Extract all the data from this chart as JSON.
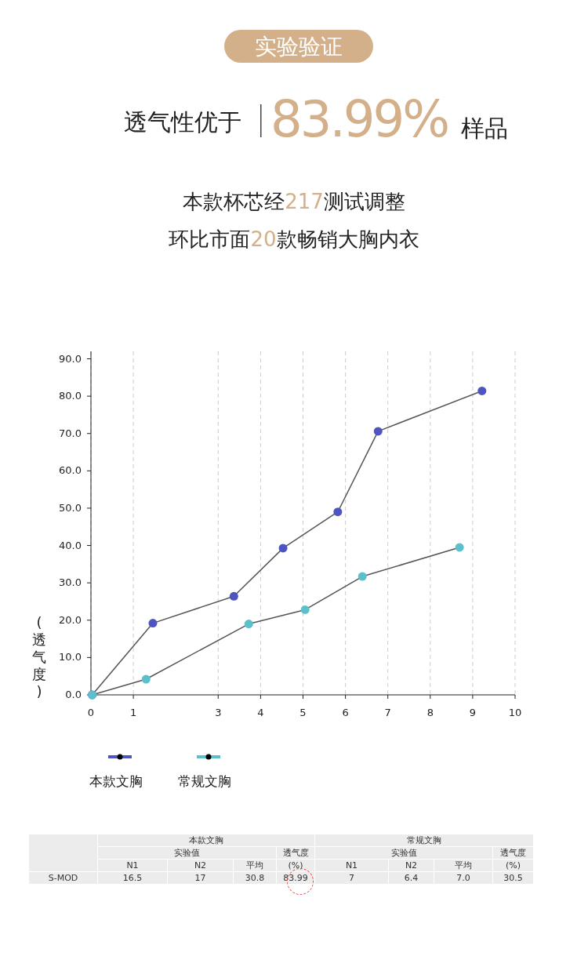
{
  "chart_data": [
    {
      "type": "line",
      "title": "实验验证",
      "subtitle": "透气性优于 83.99% 样品",
      "annotations": [
        "本款杯芯经217测试调整",
        "环比市面20款畅销大胸内衣"
      ],
      "ylabel": "(透气度)",
      "xlim": [
        0,
        10
      ],
      "ylim": [
        0,
        92
      ],
      "xticks": [
        0,
        1,
        3,
        4,
        5,
        6,
        7,
        8,
        9,
        10
      ],
      "yticks": [
        {
          "value": 0,
          "label": "0.0"
        },
        {
          "value": 10,
          "label": "10.0"
        },
        {
          "value": 20,
          "label": "20.0"
        },
        {
          "value": 30,
          "label": "30.0"
        },
        {
          "value": 40,
          "label": "40.0"
        },
        {
          "value": 50,
          "label": "50.0"
        },
        {
          "value": 60,
          "label": "60.0"
        },
        {
          "value": 70,
          "label": "70.0"
        },
        {
          "value": 80,
          "label": "80.0"
        },
        {
          "value": 90,
          "label": "90.0"
        }
      ],
      "grid": "x",
      "legend": "bottom left",
      "marker": "circle",
      "series": [
        {
          "name": "本款文胸",
          "color": "#4f55c0",
          "x": [
            0.03,
            1.46,
            3.37,
            4.53,
            5.82,
            6.77,
            9.22
          ],
          "values": [
            0,
            19.2,
            26.4,
            39.3,
            49,
            70.6,
            81.4
          ]
        },
        {
          "name": "常规文胸",
          "color": "#5bc0cc",
          "x": [
            0.03,
            1.3,
            3.72,
            5.05,
            6.4,
            8.69
          ],
          "values": [
            0,
            4.2,
            19,
            22.8,
            31.7,
            39.5
          ]
        }
      ]
    },
    {
      "type": "other",
      "annotations": [
        "本款文胸",
        "实验值",
        "透气度",
        "常规文胸",
        "实验值",
        "透气度"
      ],
      "categories": [
        "N1",
        "N2",
        "平均",
        "(%)",
        "N1",
        "N2",
        "平均",
        "(%)"
      ],
      "y_categories": [
        "S-MOD"
      ],
      "cell_labels": [
        [
          "16.5",
          "17",
          "30.8",
          "83.99",
          "7",
          "6.4",
          "7.0",
          "30.5"
        ]
      ]
    }
  ]
}
